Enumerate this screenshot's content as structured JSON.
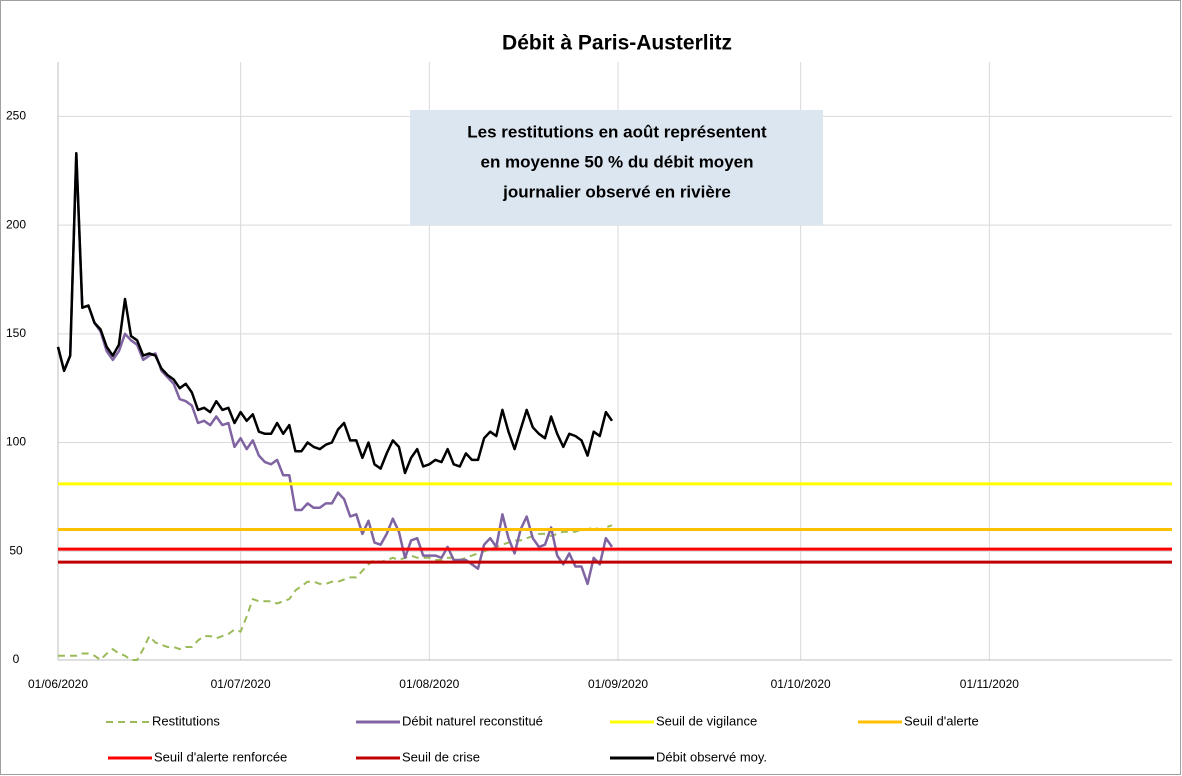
{
  "chart_data": {
    "type": "line",
    "title": "Débit à Paris-Austerlitz",
    "annotation": [
      "Les restitutions en août représentent",
      "en moyenne 50 % du débit moyen",
      "journalier observé en rivière"
    ],
    "x": [
      "2020-06-01",
      "2020-06-02",
      "2020-06-03",
      "2020-06-04",
      "2020-06-05",
      "2020-06-06",
      "2020-06-07",
      "2020-06-08",
      "2020-06-09",
      "2020-06-10",
      "2020-06-11",
      "2020-06-12",
      "2020-06-13",
      "2020-06-14",
      "2020-06-15",
      "2020-06-16",
      "2020-06-17",
      "2020-06-18",
      "2020-06-19",
      "2020-06-20",
      "2020-06-21",
      "2020-06-22",
      "2020-06-23",
      "2020-06-24",
      "2020-06-25",
      "2020-06-26",
      "2020-06-27",
      "2020-06-28",
      "2020-06-29",
      "2020-06-30",
      "2020-07-01",
      "2020-07-02",
      "2020-07-03",
      "2020-07-04",
      "2020-07-05",
      "2020-07-06",
      "2020-07-07",
      "2020-07-08",
      "2020-07-09",
      "2020-07-10",
      "2020-07-11",
      "2020-07-12",
      "2020-07-13",
      "2020-07-14",
      "2020-07-15",
      "2020-07-16",
      "2020-07-17",
      "2020-07-18",
      "2020-07-19",
      "2020-07-20",
      "2020-07-21",
      "2020-07-22",
      "2020-07-23",
      "2020-07-24",
      "2020-07-25",
      "2020-07-26",
      "2020-07-27",
      "2020-07-28",
      "2020-07-29",
      "2020-07-30",
      "2020-07-31",
      "2020-08-01",
      "2020-08-02",
      "2020-08-03",
      "2020-08-04",
      "2020-08-05",
      "2020-08-06",
      "2020-08-07",
      "2020-08-08",
      "2020-08-09",
      "2020-08-10",
      "2020-08-11",
      "2020-08-12",
      "2020-08-13",
      "2020-08-14",
      "2020-08-15",
      "2020-08-16",
      "2020-08-17",
      "2020-08-18",
      "2020-08-19",
      "2020-08-20",
      "2020-08-21",
      "2020-08-22",
      "2020-08-23",
      "2020-08-24",
      "2020-08-25",
      "2020-08-26",
      "2020-08-27",
      "2020-08-28",
      "2020-08-29",
      "2020-08-30",
      "2020-08-31"
    ],
    "series": [
      {
        "name": "Restitutions",
        "color": "#9bbb59",
        "dash": true,
        "values": [
          2,
          2,
          2,
          2,
          3,
          3,
          2,
          0,
          3,
          5,
          3,
          2,
          0,
          0,
          5,
          11,
          8,
          7,
          6,
          6,
          5,
          6,
          6,
          9,
          11,
          11,
          10,
          11,
          12,
          14,
          13,
          20,
          28,
          27,
          27,
          27,
          26,
          27,
          28,
          32,
          34,
          36,
          36,
          35,
          35,
          36,
          36,
          37,
          38,
          38,
          41,
          44,
          46,
          45,
          46,
          47,
          46,
          47,
          48,
          47,
          47,
          47,
          46,
          46,
          47,
          47,
          46,
          47,
          48,
          49,
          50,
          51,
          52,
          53,
          54,
          55,
          55,
          56,
          57,
          58,
          58,
          57,
          58,
          59,
          59,
          59,
          60,
          60,
          61,
          60,
          61,
          62
        ]
      },
      {
        "name": "Débit naturel reconstitué",
        "color": "#8064a2",
        "values": [
          144,
          133,
          140,
          233,
          162,
          163,
          155,
          151,
          142,
          138,
          142,
          150,
          147,
          145,
          138,
          140,
          141,
          133,
          130,
          127,
          120,
          119,
          117,
          109,
          110,
          108,
          112,
          108,
          109,
          98,
          102,
          97,
          101,
          94,
          91,
          90,
          92,
          85,
          85,
          69,
          69,
          72,
          70,
          70,
          72,
          72,
          77,
          74,
          66,
          67,
          58,
          64,
          54,
          53,
          58,
          65,
          59,
          47,
          55,
          56,
          48,
          48,
          48,
          47,
          52,
          46,
          46,
          46,
          44,
          42,
          53,
          56,
          52,
          67,
          56,
          49,
          60,
          66,
          56,
          52,
          53,
          61,
          48,
          44,
          49,
          43,
          43,
          35,
          47,
          44,
          56,
          52
        ]
      },
      {
        "name": "Seuil de vigilance",
        "color": "#ffff00",
        "x": [
          "2020-06-01",
          "2020-12-01"
        ],
        "values": [
          81,
          81
        ]
      },
      {
        "name": "Seuil d'alerte",
        "color": "#ffc000",
        "x": [
          "2020-06-01",
          "2020-12-01"
        ],
        "values": [
          60,
          60
        ]
      },
      {
        "name": "Seuil d'alerte renforcée",
        "color": "#ff0000",
        "x": [
          "2020-06-01",
          "2020-12-01"
        ],
        "values": [
          51,
          51
        ]
      },
      {
        "name": "Seuil de crise",
        "color": "#c00000",
        "x": [
          "2020-06-01",
          "2020-12-01"
        ],
        "values": [
          45,
          45
        ]
      },
      {
        "name": "Débit observé moy.",
        "color": "#000000",
        "values": [
          144,
          133,
          140,
          233,
          162,
          163,
          155,
          152,
          144,
          140,
          145,
          166,
          149,
          147,
          140,
          141,
          140,
          134,
          131,
          129,
          125,
          127,
          123,
          115,
          116,
          114,
          119,
          115,
          116,
          109,
          114,
          110,
          113,
          105,
          104,
          104,
          109,
          104,
          108,
          96,
          96,
          100,
          98,
          97,
          99,
          100,
          106,
          109,
          101,
          101,
          93,
          100,
          90,
          88,
          95,
          101,
          98,
          86,
          93,
          97,
          89,
          90,
          92,
          91,
          97,
          90,
          89,
          95,
          92,
          92,
          102,
          105,
          103,
          115,
          105,
          97,
          106,
          115,
          107,
          104,
          102,
          112,
          104,
          98,
          104,
          103,
          101,
          94,
          105,
          103,
          114,
          110
        ]
      }
    ],
    "xlim": [
      "2020-06-01",
      "2020-12-01"
    ],
    "xticks": [
      {
        "value": "2020-06-01",
        "label": "01/06/2020"
      },
      {
        "value": "2020-07-01",
        "label": "01/07/2020"
      },
      {
        "value": "2020-08-01",
        "label": "01/08/2020"
      },
      {
        "value": "2020-09-01",
        "label": "01/09/2020"
      },
      {
        "value": "2020-10-01",
        "label": "01/10/2020"
      },
      {
        "value": "2020-11-01",
        "label": "01/11/2020"
      }
    ],
    "ylim": [
      0,
      275
    ],
    "yticks": [
      0,
      50,
      100,
      150,
      200,
      250
    ],
    "grid": true
  }
}
